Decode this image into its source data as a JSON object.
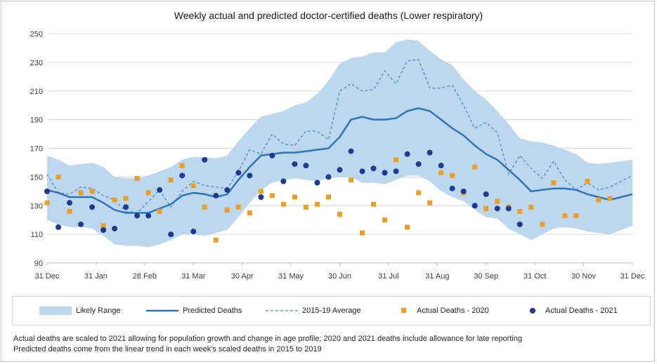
{
  "chart_data": {
    "type": "line",
    "title": "Weekly actual and predicted doctor-certified deaths (Lower respiratory)",
    "xlabel": "",
    "ylabel": "",
    "ylim": [
      90,
      250
    ],
    "yticks": [
      90,
      110,
      130,
      150,
      170,
      190,
      210,
      230,
      250
    ],
    "xtick_labels": [
      "31 Dec",
      "31 Jan",
      "28 Feb",
      "31 Mar",
      "30 Apr",
      "31 May",
      "30 Jun",
      "31 Jul",
      "31 Aug",
      "30 Sep",
      "31 Oct",
      "30 Nov",
      "31 Dec"
    ],
    "x_weeks": [
      1,
      2,
      3,
      4,
      5,
      6,
      7,
      8,
      9,
      10,
      11,
      12,
      13,
      14,
      15,
      16,
      17,
      18,
      19,
      20,
      21,
      22,
      23,
      24,
      25,
      26,
      27,
      28,
      29,
      30,
      31,
      32,
      33,
      34,
      35,
      36,
      37,
      38,
      39,
      40,
      41,
      42,
      43,
      44,
      45,
      46,
      47,
      48,
      49,
      50,
      51,
      52,
      53
    ],
    "series": [
      {
        "name": "Likely Range",
        "kind": "band",
        "lower": [
          120,
          117,
          115,
          115,
          114,
          109,
          103,
          102,
          102,
          101,
          103,
          106,
          110,
          110,
          109,
          111,
          113,
          122,
          132,
          141,
          146,
          148,
          149,
          148,
          147,
          149,
          150,
          150,
          146,
          146,
          145,
          148,
          151,
          151,
          147,
          140,
          136,
          133,
          127,
          122,
          121,
          114,
          110,
          106,
          110,
          114,
          115,
          114,
          112,
          111,
          110,
          113,
          116
        ],
        "upper": [
          165,
          162,
          158,
          159,
          160,
          157,
          150,
          149,
          149,
          151,
          154,
          157,
          162,
          164,
          164,
          163,
          165,
          175,
          184,
          192,
          194,
          196,
          200,
          202,
          208,
          217,
          229,
          233,
          234,
          237,
          237,
          244,
          246,
          245,
          238,
          232,
          228,
          218,
          210,
          204,
          196,
          187,
          177,
          175,
          174,
          172,
          169,
          166,
          160,
          159,
          160,
          161,
          162
        ]
      },
      {
        "name": "Predicted Deaths",
        "kind": "line",
        "values": [
          141,
          139,
          136,
          136,
          136,
          132,
          127,
          125,
          125,
          125,
          128,
          131,
          137,
          139,
          138,
          136,
          138,
          148,
          157,
          165,
          166,
          167,
          167,
          168,
          169,
          170,
          178,
          190,
          192,
          190,
          190,
          191,
          196,
          198,
          196,
          190,
          184,
          179,
          172,
          166,
          162,
          155,
          148,
          140,
          141,
          142,
          142,
          141,
          138,
          136,
          134,
          136,
          138
        ]
      },
      {
        "name": "2015-19 Average",
        "kind": "dashed",
        "values": [
          152,
          139,
          138,
          143,
          142,
          137,
          134,
          126,
          125,
          133,
          141,
          129,
          140,
          147,
          144,
          143,
          142,
          154,
          169,
          166,
          180,
          173,
          172,
          182,
          182,
          176,
          210,
          215,
          210,
          211,
          224,
          215,
          231,
          232,
          212,
          212,
          214,
          200,
          184,
          188,
          181,
          152,
          165,
          156,
          149,
          161,
          148,
          141,
          146,
          141,
          143,
          147,
          151
        ]
      },
      {
        "name": "Actual Deaths - 2020",
        "kind": "square",
        "points": [
          [
            1,
            132
          ],
          [
            2,
            150
          ],
          [
            3,
            126
          ],
          [
            4,
            139
          ],
          [
            5,
            140
          ],
          [
            6,
            116
          ],
          [
            7,
            134
          ],
          [
            8,
            135
          ],
          [
            9,
            149
          ],
          [
            10,
            139
          ],
          [
            11,
            126
          ],
          [
            12,
            148
          ],
          [
            13,
            158
          ],
          [
            14,
            144
          ],
          [
            15,
            129
          ],
          [
            16,
            106
          ],
          [
            17,
            127
          ],
          [
            18,
            129
          ],
          [
            19,
            125
          ],
          [
            20,
            140
          ],
          [
            21,
            137
          ],
          [
            22,
            131
          ],
          [
            23,
            136
          ],
          [
            24,
            129
          ],
          [
            25,
            131
          ],
          [
            26,
            136
          ],
          [
            27,
            124
          ],
          [
            28,
            148
          ],
          [
            29,
            111
          ],
          [
            30,
            131
          ],
          [
            31,
            120
          ],
          [
            32,
            162
          ],
          [
            33,
            115
          ],
          [
            34,
            139
          ],
          [
            35,
            132
          ],
          [
            36,
            153
          ],
          [
            37,
            151
          ],
          [
            38,
            139
          ],
          [
            39,
            157
          ],
          [
            40,
            128
          ],
          [
            41,
            133
          ],
          [
            42,
            129
          ],
          [
            43,
            126
          ],
          [
            44,
            129
          ],
          [
            45,
            117
          ],
          [
            46,
            146
          ],
          [
            47,
            123
          ],
          [
            48,
            123
          ],
          [
            49,
            147
          ],
          [
            50,
            134
          ],
          [
            51,
            135
          ]
        ]
      },
      {
        "name": "Actual Deaths - 2021",
        "kind": "circle",
        "points": [
          [
            1,
            140
          ],
          [
            2,
            115
          ],
          [
            3,
            132
          ],
          [
            4,
            117
          ],
          [
            5,
            129
          ],
          [
            6,
            113
          ],
          [
            7,
            114
          ],
          [
            8,
            129
          ],
          [
            9,
            123
          ],
          [
            10,
            123
          ],
          [
            11,
            141
          ],
          [
            12,
            110
          ],
          [
            13,
            151
          ],
          [
            14,
            112
          ],
          [
            15,
            162
          ],
          [
            16,
            137
          ],
          [
            17,
            141
          ],
          [
            18,
            153
          ],
          [
            19,
            151
          ],
          [
            20,
            136
          ],
          [
            21,
            165
          ],
          [
            22,
            147
          ],
          [
            23,
            159
          ],
          [
            24,
            158
          ],
          [
            25,
            146
          ],
          [
            26,
            150
          ],
          [
            27,
            155
          ],
          [
            28,
            168
          ],
          [
            29,
            154
          ],
          [
            30,
            156
          ],
          [
            31,
            153
          ],
          [
            32,
            154
          ],
          [
            33,
            166
          ],
          [
            34,
            159
          ],
          [
            35,
            167
          ],
          [
            36,
            158
          ],
          [
            37,
            142
          ],
          [
            38,
            140
          ],
          [
            39,
            130
          ],
          [
            40,
            138
          ],
          [
            41,
            128
          ],
          [
            42,
            128
          ],
          [
            43,
            117
          ]
        ]
      }
    ],
    "legend_position": "bottom",
    "colors": {
      "band": "#bdd7ee",
      "line": "#2e75b6",
      "dashed": "#5b9bd5",
      "square": "#ed9f25",
      "circle": "#1f3a93"
    }
  },
  "legend": {
    "band": "Likely Range",
    "line": "Predicted Deaths",
    "dashed": "2015-19 Average",
    "square": "Actual Deaths - 2020",
    "circle": "Actual Deaths - 2021"
  },
  "notes": [
    "Actual deaths are scaled to 2021 allowing for population growth and change in age profile; 2020 and 2021 deaths include allowance for late reporting",
    "Predicted deaths come from the linear trend in each week's scaled deaths in 2015 to 2019"
  ]
}
